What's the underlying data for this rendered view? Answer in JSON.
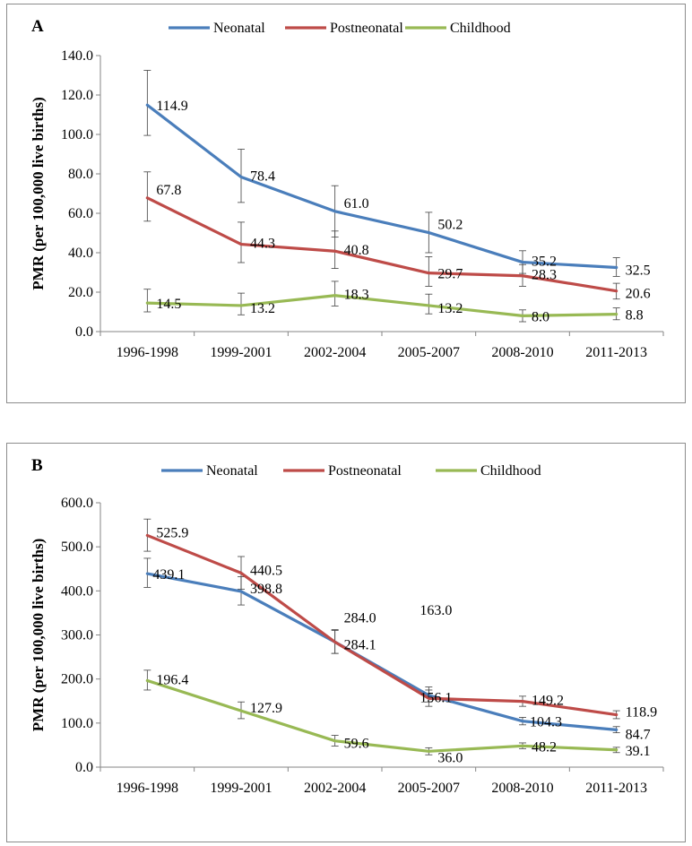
{
  "colors": {
    "neonatal": "#4a7ebb",
    "postneonatal": "#be4b48",
    "childhood": "#98b954",
    "errorbar": "#404040",
    "axis": "#868686"
  },
  "chart_data": [
    {
      "panel": "A",
      "type": "line",
      "categories": [
        "1996-1998",
        "1999-2001",
        "2002-2004",
        "2005-2007",
        "2008-2010",
        "2011-2013"
      ],
      "ylabel": "PMR (per 100,000 live births)",
      "ylim": [
        0,
        140
      ],
      "yticks": [
        "0.0",
        "20.0",
        "40.0",
        "60.0",
        "80.0",
        "100.0",
        "120.0",
        "140.0"
      ],
      "ytick_values": [
        0,
        20,
        40,
        60,
        80,
        100,
        120,
        140
      ],
      "legend_position": "top",
      "series": [
        {
          "name": "Neonatal",
          "key": "neonatal",
          "values": [
            114.9,
            78.4,
            61.0,
            50.2,
            35.2,
            32.5
          ],
          "labels": [
            "114.9",
            "78.4",
            "61.0",
            "50.2",
            "35.2",
            "32.5"
          ],
          "err_low": [
            99.5,
            65.5,
            48.0,
            40.0,
            29.5,
            28.0
          ],
          "err_high": [
            132.5,
            92.5,
            74.0,
            60.5,
            41.0,
            37.5
          ]
        },
        {
          "name": "Postneonatal",
          "key": "postneonatal",
          "values": [
            67.8,
            44.3,
            40.8,
            29.7,
            28.3,
            20.6
          ],
          "labels": [
            "67.8",
            "44.3",
            "40.8",
            "29.7",
            "28.3",
            "20.6"
          ],
          "err_low": [
            56.0,
            35.0,
            32.0,
            23.0,
            23.0,
            16.5
          ],
          "err_high": [
            81.0,
            55.5,
            51.0,
            38.0,
            34.0,
            24.5
          ]
        },
        {
          "name": "Childhood",
          "key": "childhood",
          "values": [
            14.5,
            13.2,
            18.3,
            13.2,
            8.0,
            8.8
          ],
          "labels": [
            "14.5",
            "13.2",
            "18.3",
            "13.2",
            "8.0",
            "8.8"
          ],
          "err_low": [
            10.0,
            8.5,
            13.0,
            9.0,
            5.0,
            6.0
          ],
          "err_high": [
            21.5,
            19.5,
            25.5,
            19.0,
            11.0,
            12.0
          ]
        }
      ]
    },
    {
      "panel": "B",
      "type": "line",
      "categories": [
        "1996-1998",
        "1999-2001",
        "2002-2004",
        "2005-2007",
        "2008-2010",
        "2011-2013"
      ],
      "ylabel": "PMR (per 100,000 live births)",
      "ylim": [
        0,
        600
      ],
      "yticks": [
        "0.0",
        "100.0",
        "200.0",
        "300.0",
        "400.0",
        "500.0",
        "600.0"
      ],
      "ytick_values": [
        0,
        100,
        200,
        300,
        400,
        500,
        600
      ],
      "legend_position": "top",
      "series": [
        {
          "name": "Neonatal",
          "key": "neonatal",
          "values": [
            439.1,
            398.8,
            284.1,
            163.0,
            104.3,
            84.7
          ],
          "labels": [
            "439.1",
            "398.8",
            "284.1",
            "163.0",
            "104.3",
            "84.7"
          ],
          "err_low": [
            408,
            368,
            258,
            148,
            96,
            78
          ],
          "err_high": [
            474,
            432,
            310,
            182,
            113,
            92
          ]
        },
        {
          "name": "Postneonatal",
          "key": "postneonatal",
          "values": [
            525.9,
            440.5,
            284.0,
            156.1,
            149.2,
            118.9
          ],
          "labels": [
            "525.9",
            "440.5",
            "284.0",
            "156.1",
            "149.2",
            "118.9"
          ],
          "err_low": [
            490,
            404,
            258,
            138,
            138,
            110
          ],
          "err_high": [
            563,
            478,
            312,
            175,
            161,
            128
          ]
        },
        {
          "name": "Childhood",
          "key": "childhood",
          "values": [
            196.4,
            127.9,
            59.6,
            36.0,
            48.2,
            39.1
          ],
          "labels": [
            "196.4",
            "127.9",
            "59.6",
            "36.0",
            "48.2",
            "39.1"
          ],
          "err_low": [
            175,
            110,
            48,
            28,
            42,
            33
          ],
          "err_high": [
            220,
            148,
            72,
            44,
            55,
            45
          ]
        }
      ]
    }
  ]
}
